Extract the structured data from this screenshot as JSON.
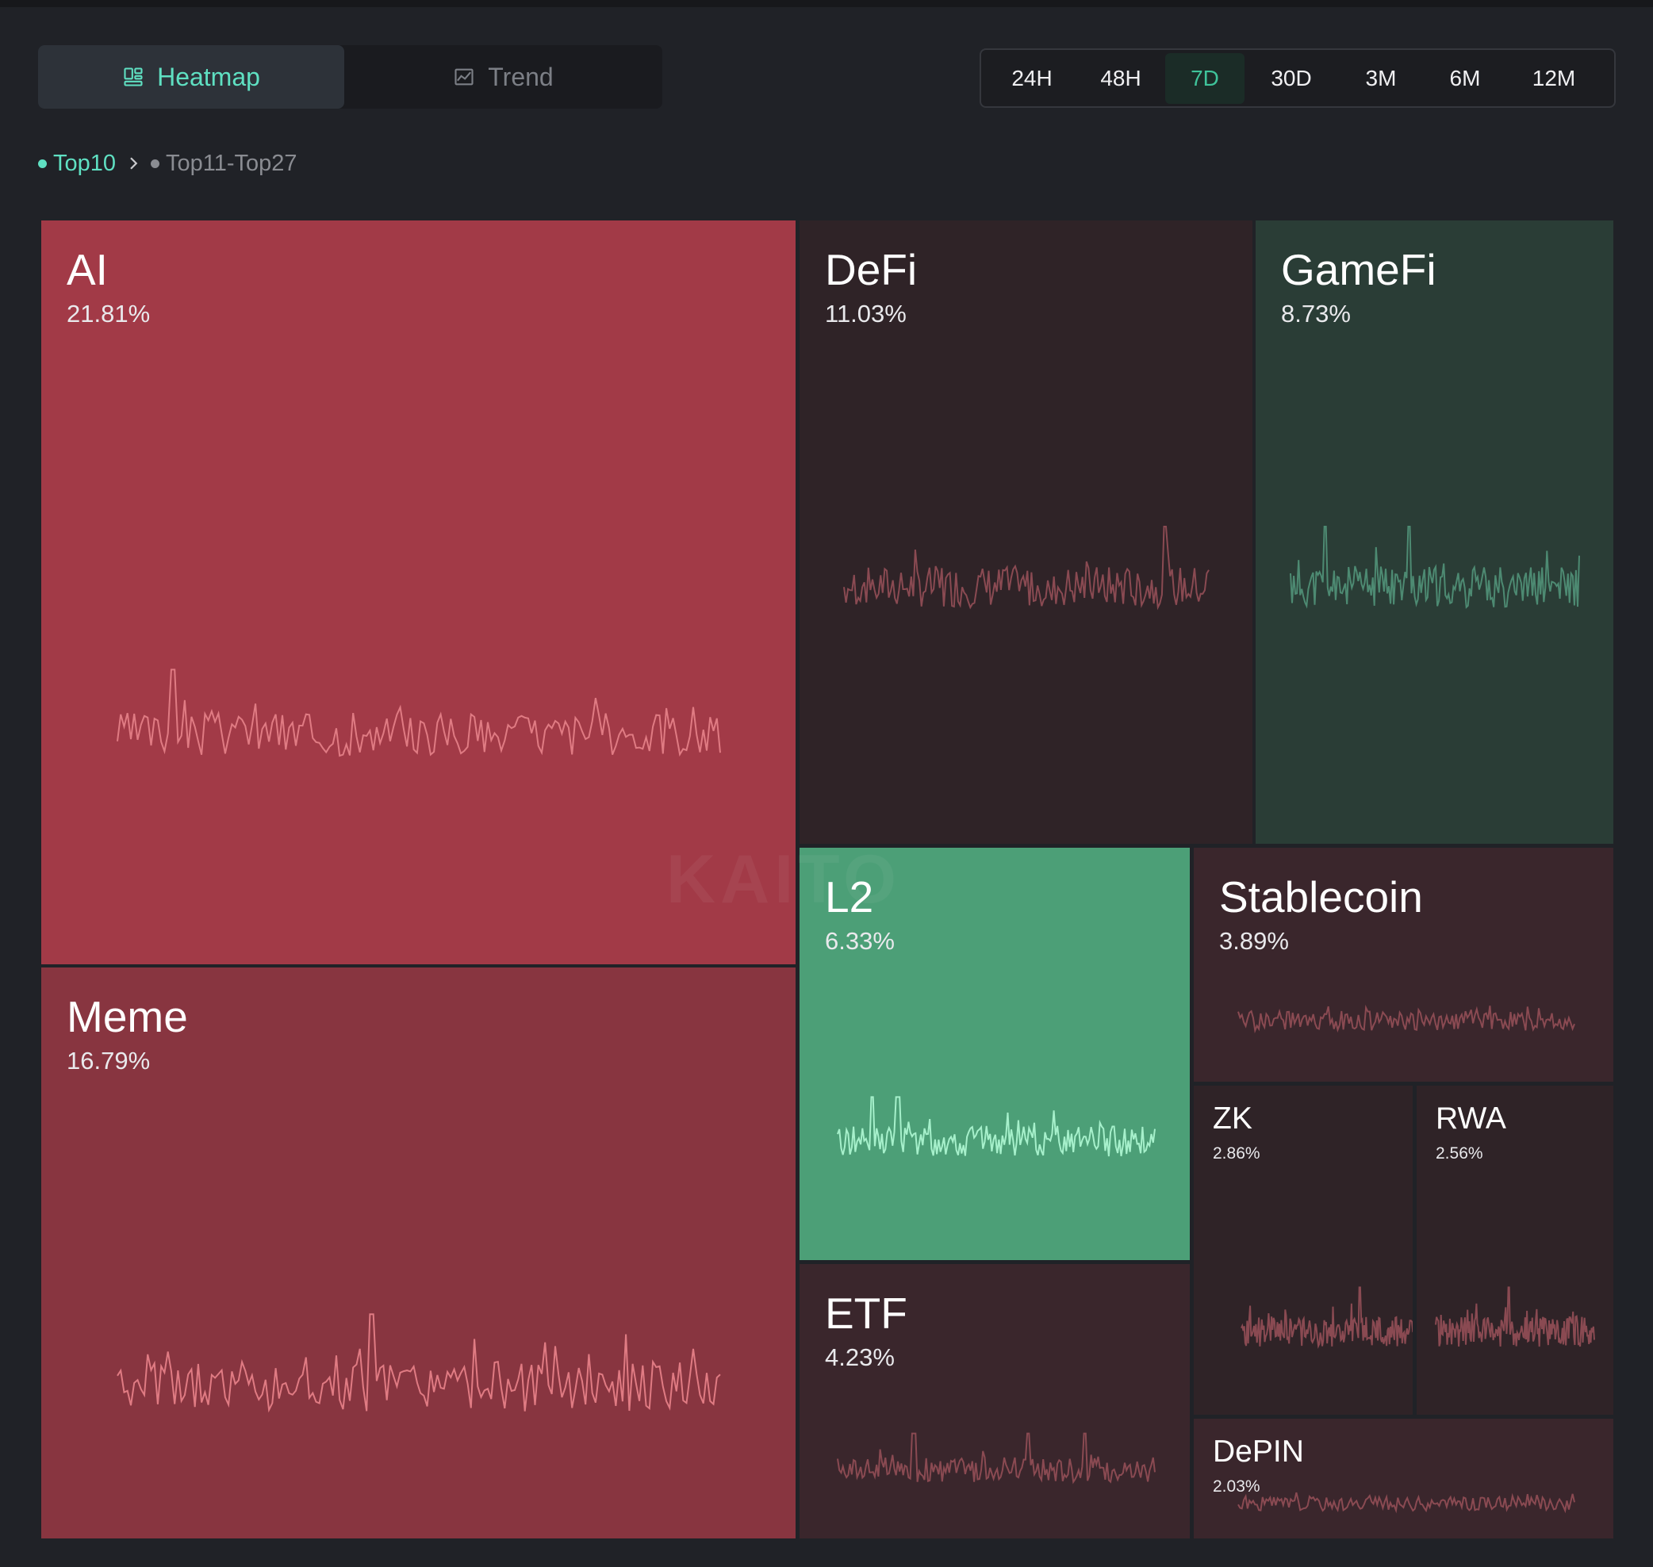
{
  "view_toggle": {
    "heatmap_label": "Heatmap",
    "trend_label": "Trend",
    "active": "Heatmap"
  },
  "range": {
    "options": [
      "24H",
      "48H",
      "7D",
      "30D",
      "3M",
      "6M",
      "12M"
    ],
    "active": "7D"
  },
  "breadcrumb": {
    "items": [
      "Top10",
      "Top11-Top27"
    ],
    "active": "Top10"
  },
  "colors": {
    "accent": "#5fe0c2",
    "red_strong": "#a23a47",
    "red_mid": "#883540",
    "dark_red": "#2f2327",
    "dark_red2": "#3a262c",
    "dark_green": "#2a3d36",
    "green": "#4c9f77"
  },
  "watermark": "KAITO",
  "chart_data": {
    "type": "heatmap",
    "tiles": [
      {
        "name": "AI",
        "value": 21.81,
        "label": "21.81%"
      },
      {
        "name": "Meme",
        "value": 16.79,
        "label": "16.79%"
      },
      {
        "name": "DeFi",
        "value": 11.03,
        "label": "11.03%"
      },
      {
        "name": "GameFi",
        "value": 8.73,
        "label": "8.73%"
      },
      {
        "name": "L2",
        "value": 6.33,
        "label": "6.33%"
      },
      {
        "name": "ETF",
        "value": 4.23,
        "label": "4.23%"
      },
      {
        "name": "Stablecoin",
        "value": 3.89,
        "label": "3.89%"
      },
      {
        "name": "ZK",
        "value": 2.86,
        "label": "2.86%"
      },
      {
        "name": "RWA",
        "value": 2.56,
        "label": "2.56%"
      },
      {
        "name": "DePIN",
        "value": 2.03,
        "label": "2.03%"
      }
    ]
  }
}
